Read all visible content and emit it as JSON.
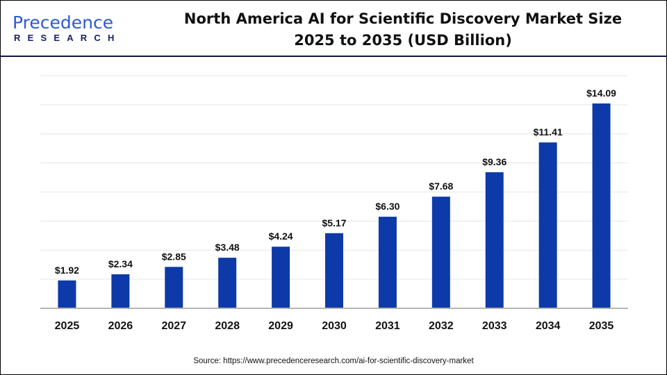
{
  "logo": {
    "text_main": "Precedence",
    "text_sub": "RESEARCH"
  },
  "header": {
    "title_line1": "North America AI for Scientific Discovery Market Size",
    "title_line2": "2025 to 2035 (USD Billion)"
  },
  "source": "Source: https://www.precedenceresearch.com/ai-for-scientific-discovery-market",
  "chart_data": {
    "type": "bar",
    "title": "North America AI for Scientific Discovery Market Size 2025 to 2035 (USD Billion)",
    "categories": [
      "2025",
      "2026",
      "2027",
      "2028",
      "2029",
      "2030",
      "2031",
      "2032",
      "2033",
      "2034",
      "2035"
    ],
    "values": [
      1.92,
      2.34,
      2.85,
      3.48,
      4.24,
      5.17,
      6.3,
      7.68,
      9.36,
      11.41,
      14.09
    ],
    "data_labels": [
      "$1.92",
      "$2.34",
      "$2.85",
      "$3.48",
      "$4.24",
      "$5.17",
      "$6.30",
      "$7.68",
      "$9.36",
      "$11.41",
      "$14.09"
    ],
    "xlabel": "",
    "ylabel": "",
    "ylim": [
      0,
      16
    ],
    "grid_step": 2,
    "grid": true,
    "y_tick_labels_shown": false,
    "bar_color": "#0d3aa8"
  }
}
